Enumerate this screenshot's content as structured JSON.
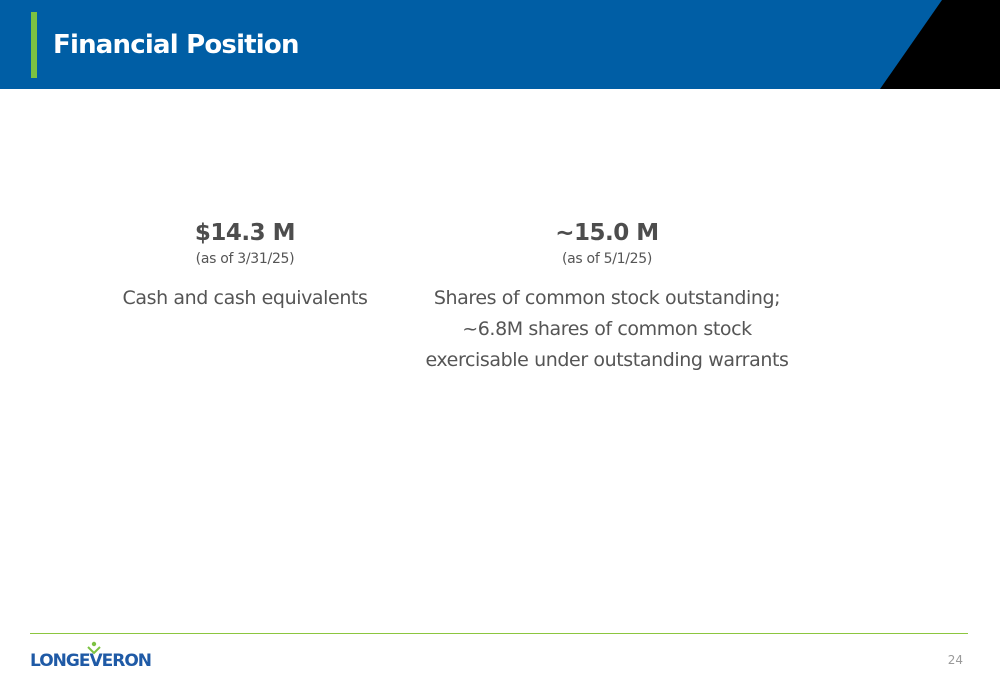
{
  "header": {
    "title": "Financial Position",
    "colors": {
      "bar": "#005ea5",
      "accent": "#7cc242",
      "corner": "#000000"
    }
  },
  "stats": [
    {
      "value": "$14.3 M",
      "date": "(as of 3/31/25)",
      "description_lines": [
        "Cash and cash equivalents"
      ]
    },
    {
      "value": "~15.0 M",
      "date": "(as of 5/1/25)",
      "description_lines": [
        "Shares of common stock outstanding;",
        "~6.8M shares of common stock",
        "exercisable under outstanding warrants"
      ]
    }
  ],
  "footer": {
    "logo_text": "LONGEVERON",
    "logo_icon": "person-leaf-icon",
    "page_number": "24",
    "rule_color": "#8cc63f"
  }
}
